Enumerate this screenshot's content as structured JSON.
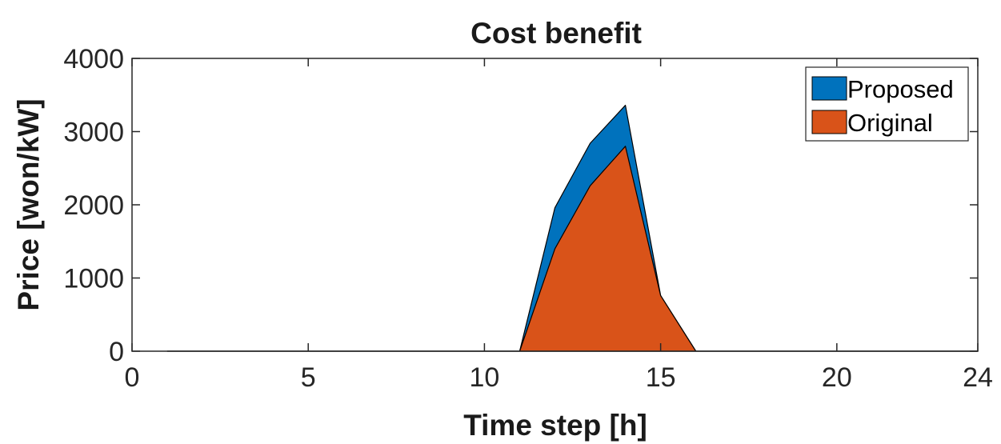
{
  "chart_data": {
    "type": "area",
    "title": "Cost benefit",
    "xlabel": "Time step [h]",
    "ylabel": "Price [won/kW]",
    "xlim": [
      0,
      24
    ],
    "ylim": [
      0,
      4000
    ],
    "xticks": [
      0,
      5,
      10,
      15,
      20,
      24
    ],
    "yticks": [
      0,
      1000,
      2000,
      3000,
      4000
    ],
    "grid": false,
    "legend_position": "top-right",
    "x": [
      1,
      2,
      3,
      4,
      5,
      6,
      7,
      8,
      9,
      10,
      11,
      12,
      13,
      14,
      15,
      16,
      17,
      18,
      19,
      20,
      21,
      22,
      23,
      24
    ],
    "series": [
      {
        "name": "Proposed",
        "color": "#0072BD",
        "values": [
          0,
          0,
          0,
          0,
          0,
          0,
          0,
          0,
          0,
          0,
          0,
          1960,
          2840,
          3360,
          760,
          0,
          0,
          0,
          0,
          0,
          0,
          0,
          0,
          0
        ]
      },
      {
        "name": "Original",
        "color": "#D95319",
        "values": [
          0,
          0,
          0,
          0,
          0,
          0,
          0,
          0,
          0,
          0,
          0,
          1400,
          2260,
          2800,
          760,
          0,
          0,
          0,
          0,
          0,
          0,
          0,
          0,
          0
        ]
      }
    ]
  }
}
